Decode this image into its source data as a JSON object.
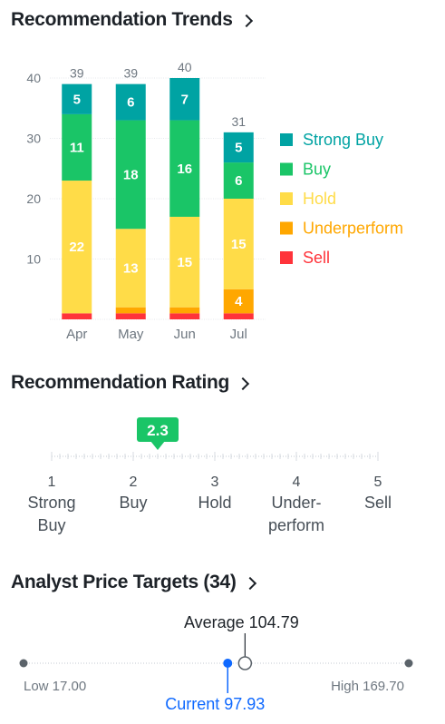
{
  "trends": {
    "title": "Recommendation Trends",
    "chart_data": {
      "type": "bar",
      "stacked": true,
      "categories": [
        "Apr",
        "May",
        "Jun",
        "Jul"
      ],
      "ylim": [
        0,
        40
      ],
      "yticks": [
        10,
        20,
        30,
        40
      ],
      "grid": true,
      "legend_position": "right",
      "series": [
        {
          "name": "Sell",
          "color": "#ff333a",
          "values": [
            1,
            1,
            1,
            1
          ]
        },
        {
          "name": "Underperform",
          "color": "#ffa700",
          "values": [
            0,
            1,
            1,
            4
          ]
        },
        {
          "name": "Hold",
          "color": "#ffdc48",
          "values": [
            22,
            13,
            15,
            15
          ]
        },
        {
          "name": "Buy",
          "color": "#1ac567",
          "values": [
            11,
            18,
            16,
            6
          ]
        },
        {
          "name": "Strong Buy",
          "color": "#00a3a3",
          "values": [
            5,
            6,
            7,
            5
          ]
        }
      ],
      "totals": [
        39,
        39,
        40,
        31
      ]
    }
  },
  "rating": {
    "title": "Recommendation Rating",
    "value": 2.3,
    "value_label": "2.3",
    "scale": [
      {
        "num": "1",
        "line1": "Strong",
        "line2": "Buy"
      },
      {
        "num": "2",
        "line1": "Buy",
        "line2": ""
      },
      {
        "num": "3",
        "line1": "Hold",
        "line2": ""
      },
      {
        "num": "4",
        "line1": "Under-",
        "line2": "perform"
      },
      {
        "num": "5",
        "line1": "Sell",
        "line2": ""
      }
    ]
  },
  "targets": {
    "title": "Analyst Price Targets (34)",
    "low": 17.0,
    "high": 169.7,
    "average": 104.79,
    "current": 97.93,
    "low_label": "Low 17.00",
    "high_label": "High 169.70",
    "average_label": "Average 104.79",
    "current_label": "Current 97.93",
    "current_color": "#0f69ff"
  }
}
